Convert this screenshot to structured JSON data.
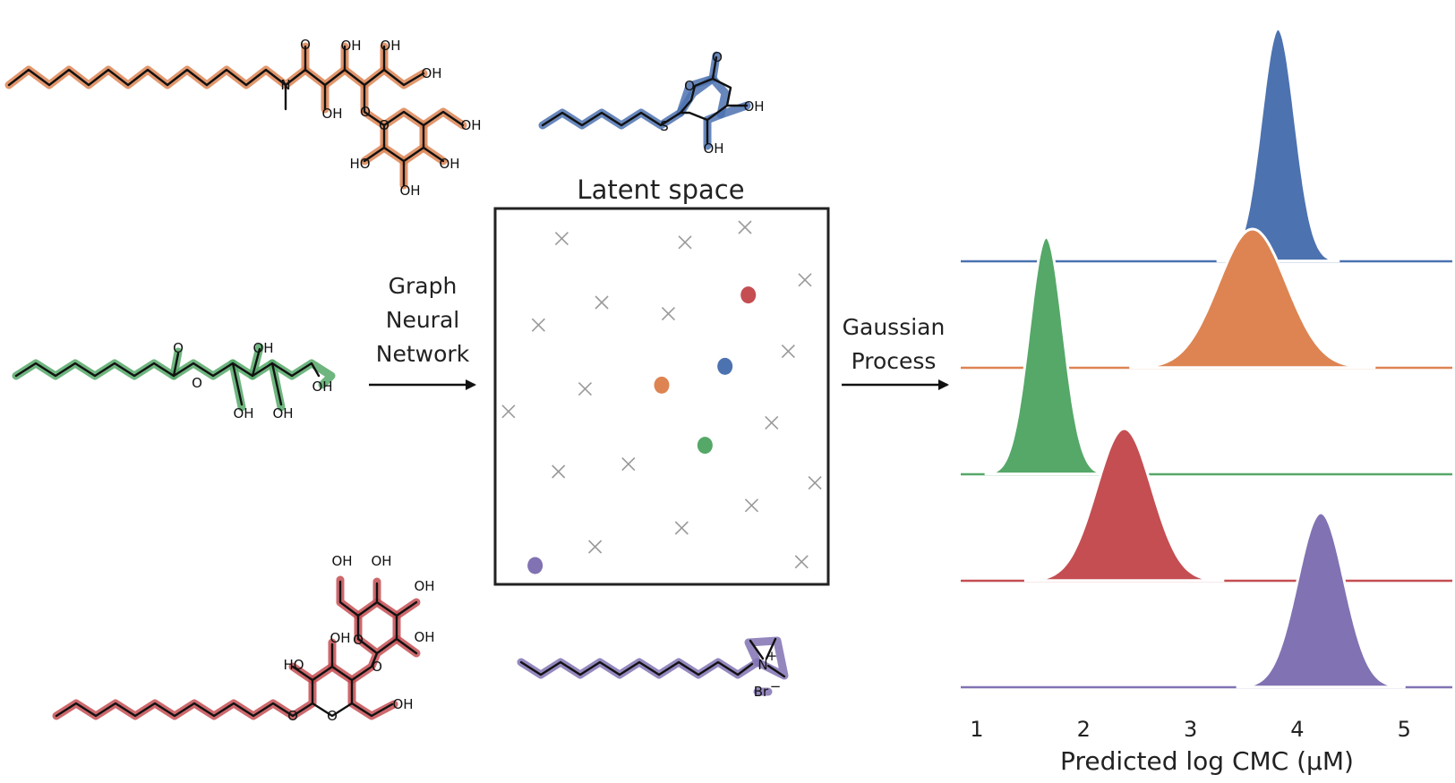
{
  "labels": {
    "latent_title": "Latent space",
    "gnn": [
      "Graph",
      "Neural",
      "Network"
    ],
    "gp": [
      "Gaussian",
      "Process"
    ],
    "xlabel": "Predicted log CMC (μM)"
  },
  "colors": {
    "blue": "#4c72b0",
    "orange": "#dd8452",
    "green": "#55a868",
    "red": "#c44e52",
    "purple": "#8172b3",
    "cross": "#9a9a9a"
  },
  "atom_labels": {
    "oh": "OH",
    "ho": "HO",
    "o": "O",
    "n": "N",
    "s": "S",
    "br": "Br",
    "charge": "+",
    "anion": "−"
  },
  "chart_data": {
    "type": "ridgeline",
    "xticks": [
      1,
      2,
      3,
      4,
      5
    ],
    "xlim": [
      0.85,
      5.45
    ],
    "xlabel": "Predicted log CMC (μM)",
    "series": [
      {
        "color": "blue",
        "mean": 3.82,
        "sd": 0.16,
        "peak_label": ""
      },
      {
        "color": "orange",
        "mean": 3.58,
        "sd": 0.32
      },
      {
        "color": "green",
        "mean": 1.65,
        "sd": 0.16
      },
      {
        "color": "red",
        "mean": 2.38,
        "sd": 0.26
      },
      {
        "color": "purple",
        "mean": 4.22,
        "sd": 0.22
      }
    ]
  },
  "latent": {
    "crosses": [
      [
        0.2,
        0.08
      ],
      [
        0.57,
        0.09
      ],
      [
        0.75,
        0.05
      ],
      [
        0.93,
        0.19
      ],
      [
        0.32,
        0.25
      ],
      [
        0.52,
        0.28
      ],
      [
        0.13,
        0.31
      ],
      [
        0.88,
        0.38
      ],
      [
        0.27,
        0.48
      ],
      [
        0.04,
        0.54
      ],
      [
        0.83,
        0.57
      ],
      [
        0.4,
        0.68
      ],
      [
        0.19,
        0.7
      ],
      [
        0.96,
        0.73
      ],
      [
        0.77,
        0.79
      ],
      [
        0.56,
        0.85
      ],
      [
        0.3,
        0.9
      ],
      [
        0.92,
        0.94
      ]
    ],
    "points": [
      {
        "color": "red",
        "x": 0.76,
        "y": 0.23
      },
      {
        "color": "blue",
        "x": 0.69,
        "y": 0.42
      },
      {
        "color": "orange",
        "x": 0.5,
        "y": 0.47
      },
      {
        "color": "green",
        "x": 0.63,
        "y": 0.63
      },
      {
        "color": "purple",
        "x": 0.12,
        "y": 0.95
      }
    ]
  }
}
